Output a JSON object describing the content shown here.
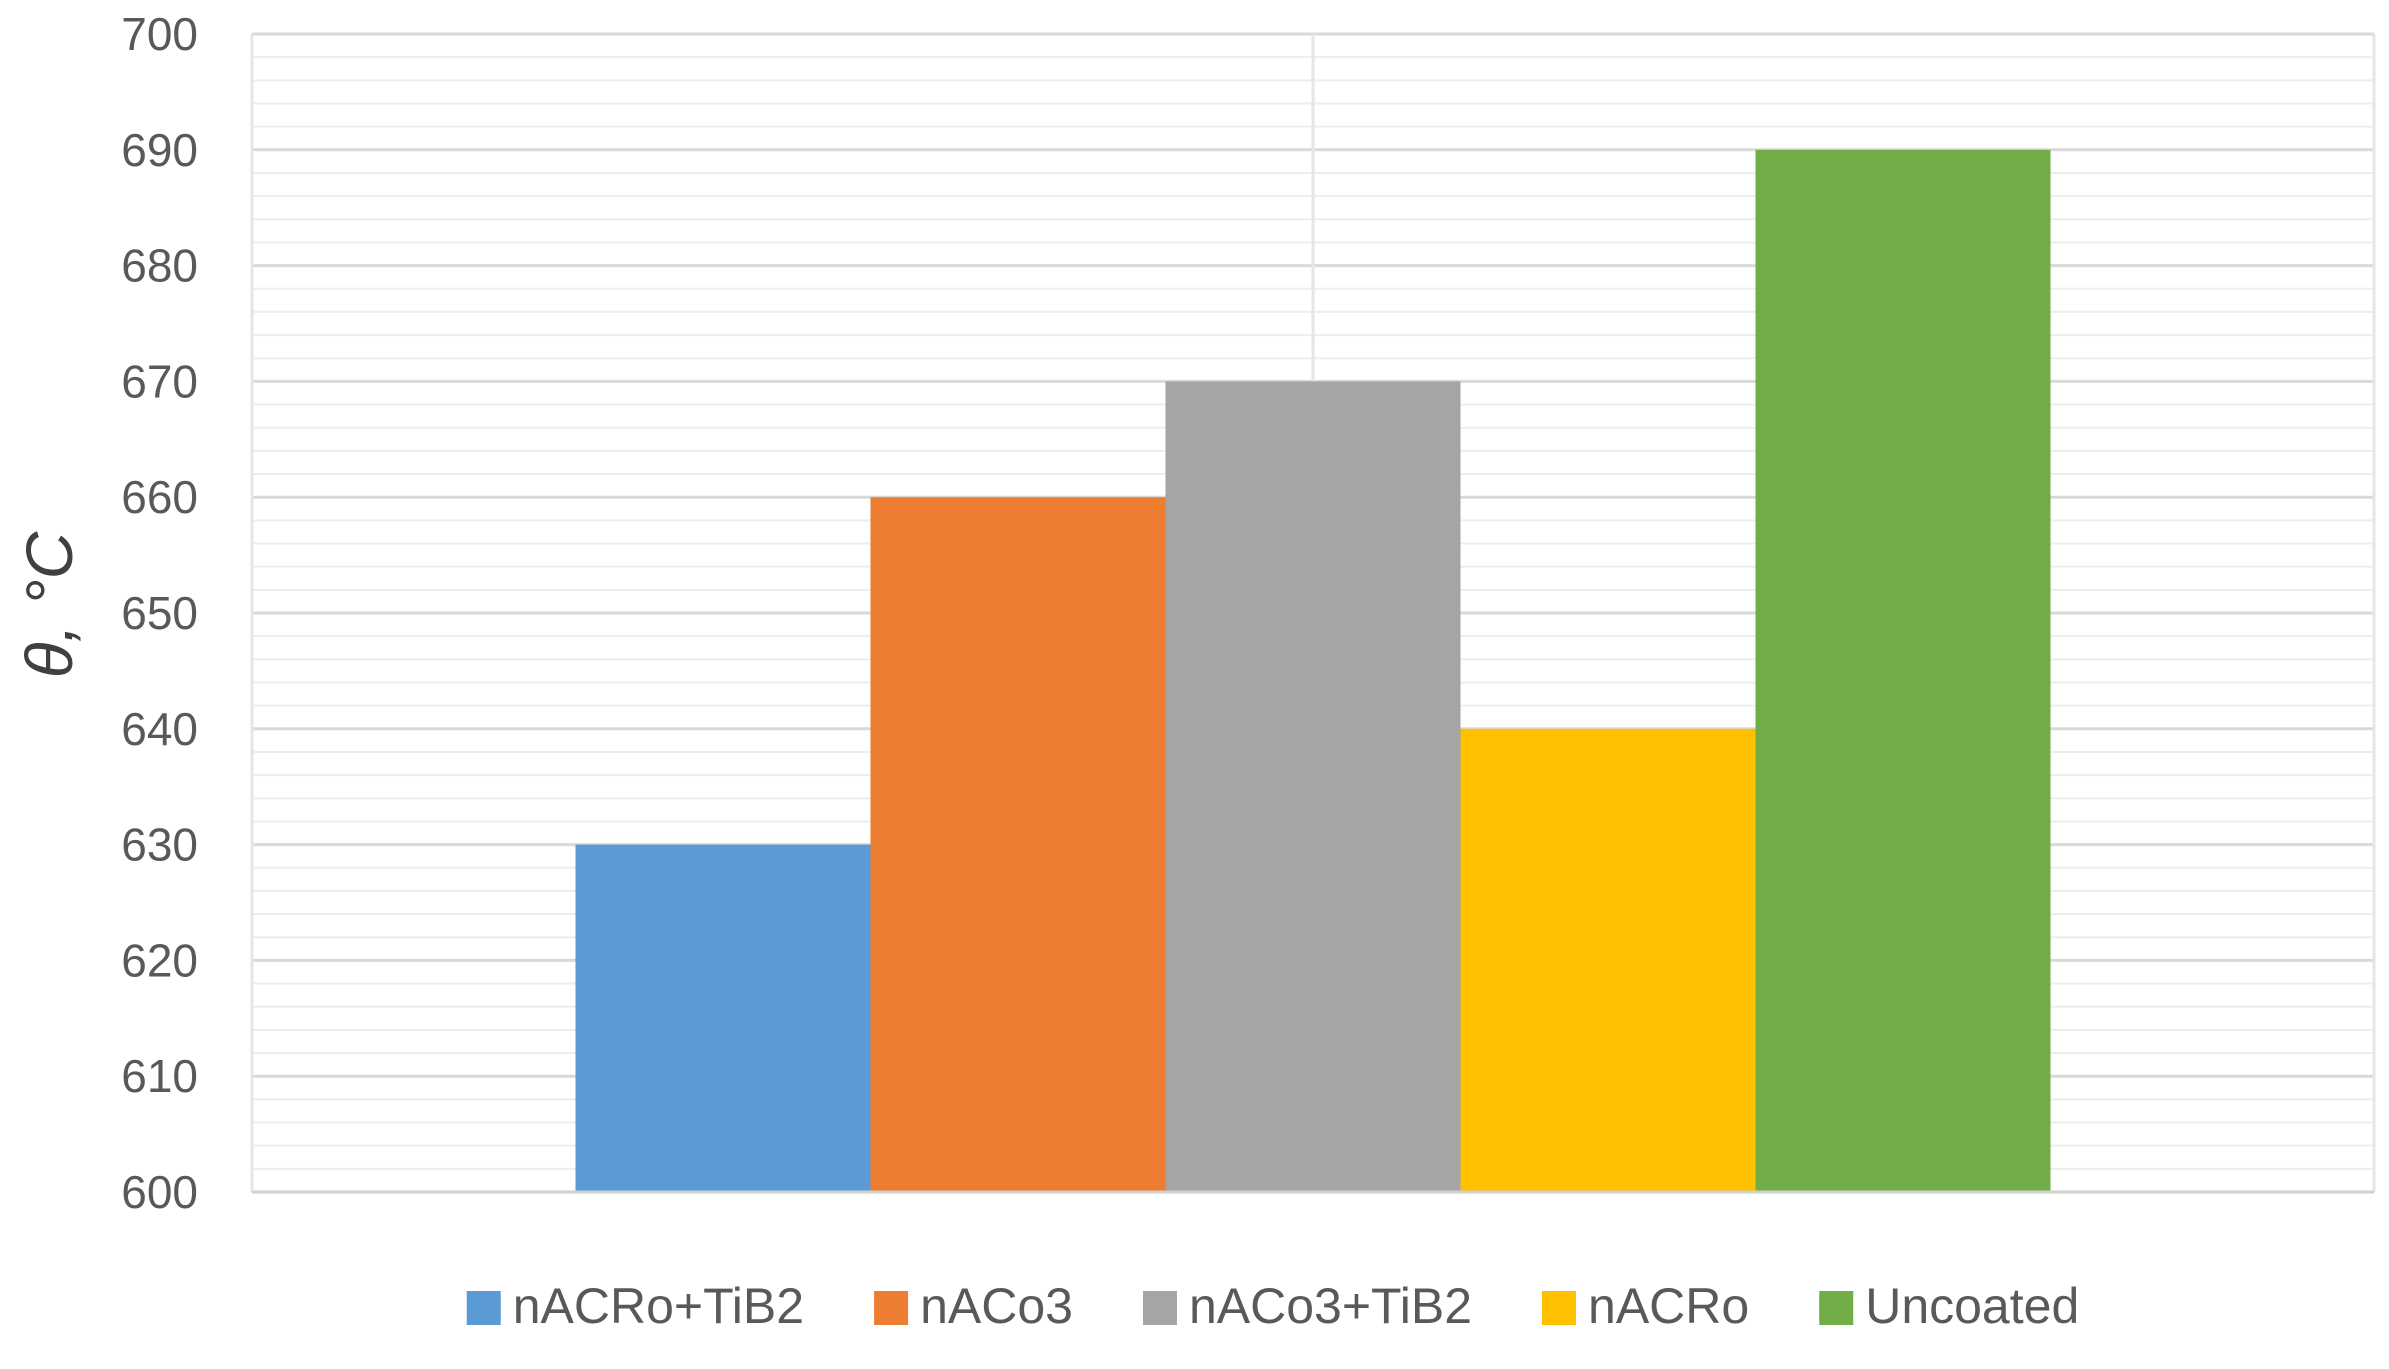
{
  "chart_data": {
    "type": "bar",
    "title": "",
    "xlabel": "",
    "ylabel": "θ, °C",
    "ylim": [
      600,
      700
    ],
    "y_major_step": 10,
    "y_minor_step": 2,
    "grid": true,
    "legend_position": "bottom",
    "categories": [
      ""
    ],
    "series": [
      {
        "name": "nACRo+TiB2",
        "values": [
          630
        ],
        "color": "#5b9bd5"
      },
      {
        "name": "nACo3",
        "values": [
          660
        ],
        "color": "#ed7d31"
      },
      {
        "name": "nACo3+TiB2",
        "values": [
          670
        ],
        "color": "#a5a5a5"
      },
      {
        "name": "nACRo",
        "values": [
          640
        ],
        "color": "#ffc000"
      },
      {
        "name": "Uncoated",
        "values": [
          690
        ],
        "color": "#70ad47"
      }
    ]
  }
}
